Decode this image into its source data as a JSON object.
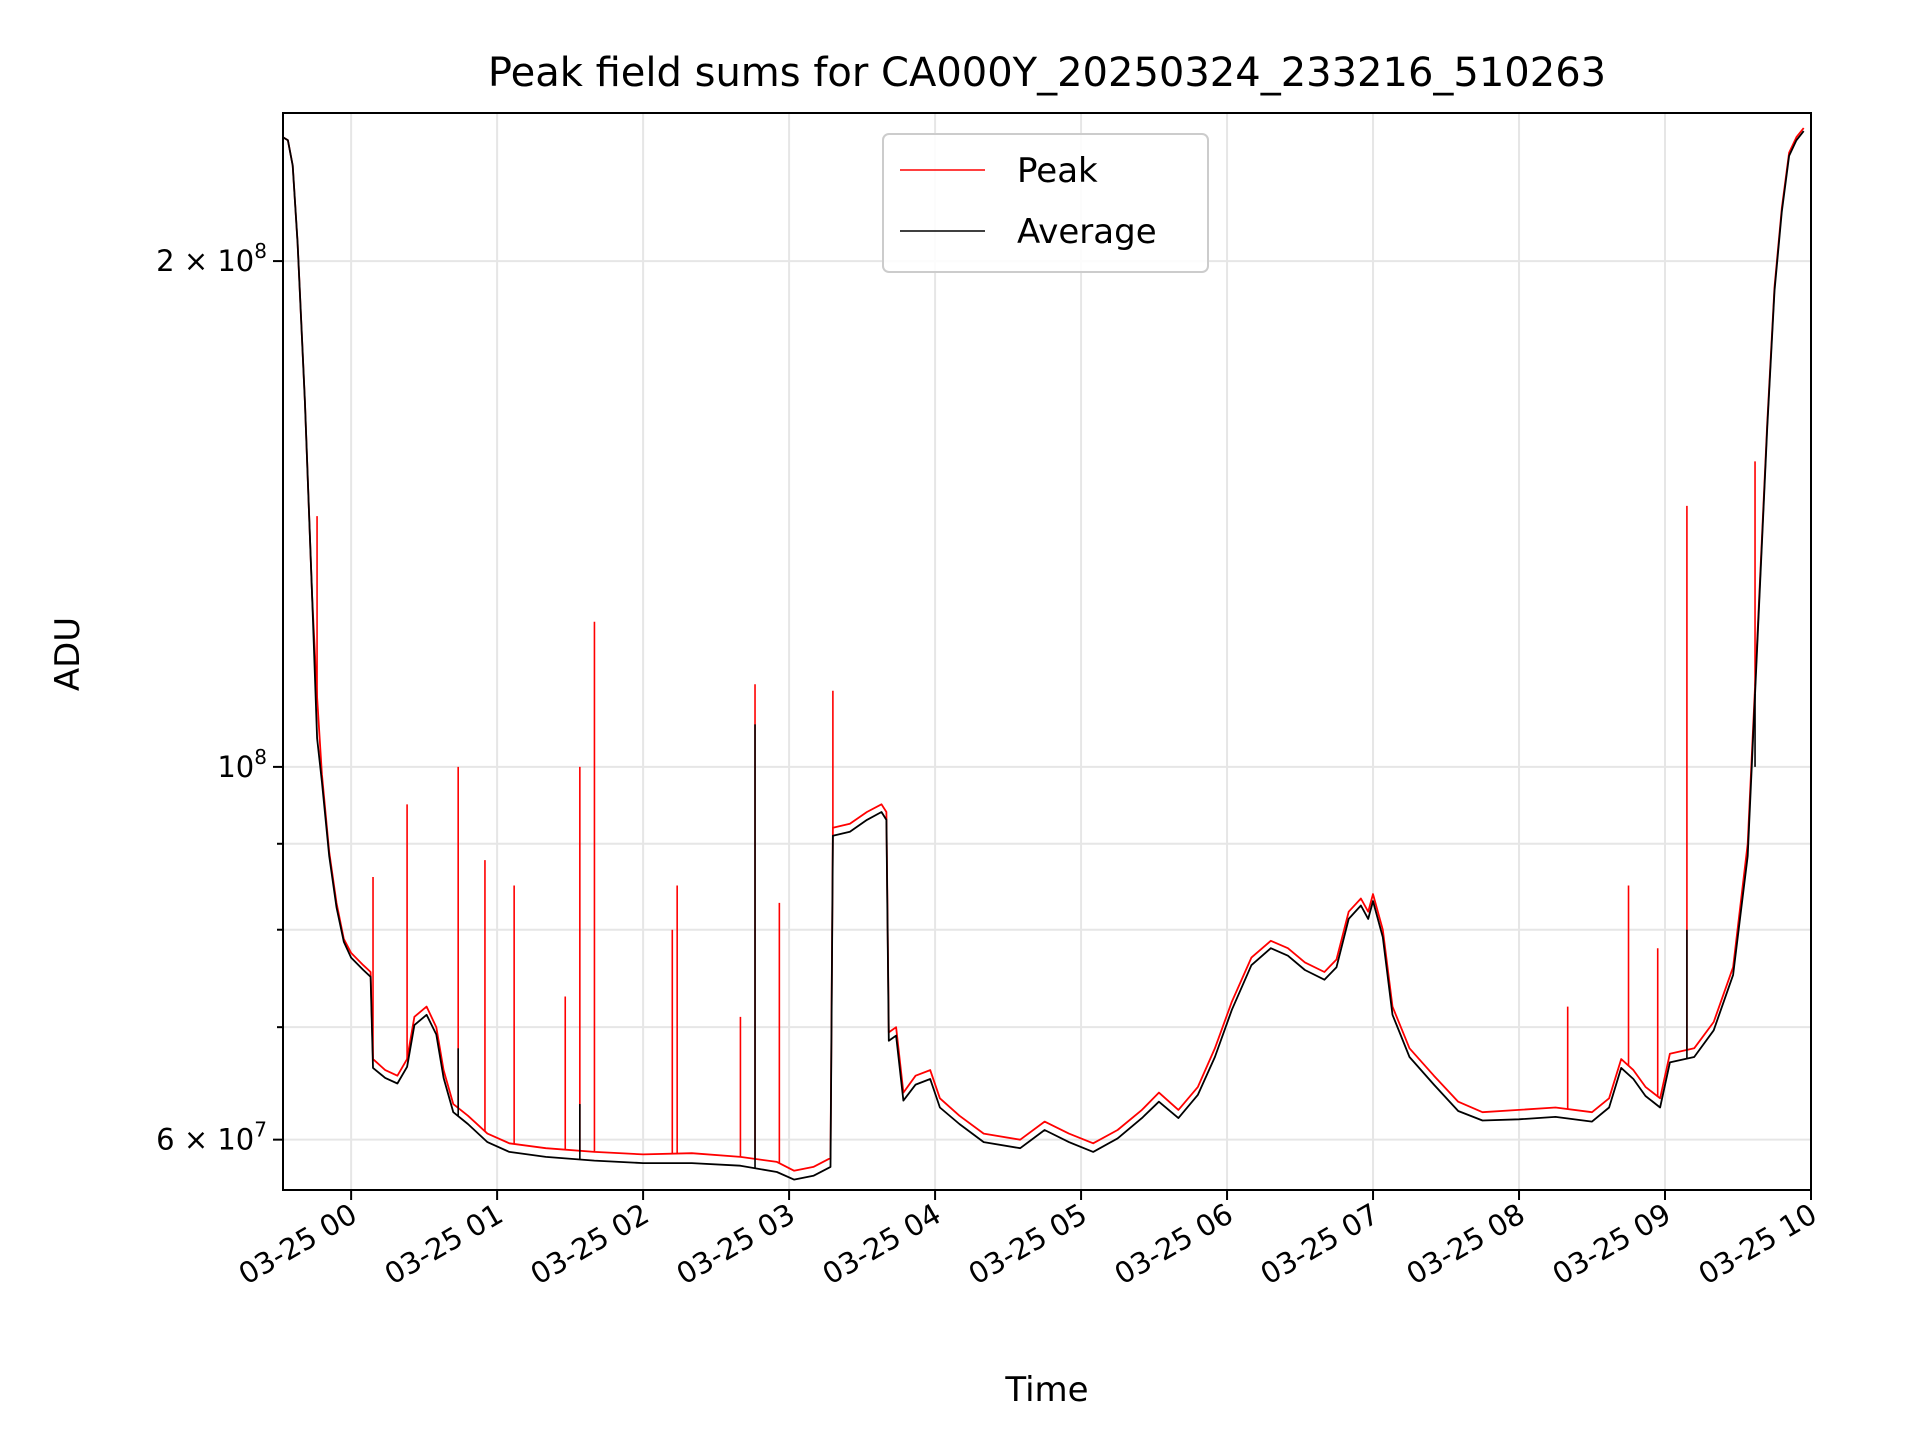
{
  "chart_data": {
    "type": "line",
    "title": "Peak field sums for CA000Y_20250324_233216_510263",
    "xlabel": "Time",
    "ylabel": "ADU",
    "y_scale": "log",
    "grid": true,
    "legend_position": "upper-center",
    "x_range": [
      "03-24 23:32",
      "03-25 10:00"
    ],
    "ylim": [
      56000000,
      245000000
    ],
    "x_ticks": [
      "03-25 00",
      "03-25 01",
      "03-25 02",
      "03-25 03",
      "03-25 04",
      "03-25 05",
      "03-25 06",
      "03-25 07",
      "03-25 08",
      "03-25 09",
      "03-25 10"
    ],
    "y_major_ticks": [
      {
        "value": 60000000,
        "base": "6 × 10",
        "exp": "7"
      },
      {
        "value": 100000000,
        "base": "10",
        "exp": "8"
      },
      {
        "value": 200000000,
        "base": "2 × 10",
        "exp": "8"
      }
    ],
    "y_minor_ticks": [
      70000000,
      80000000,
      90000000
    ],
    "series": [
      {
        "name": "Peak",
        "color": "#ff0000",
        "points": [
          [
            "03-24 23:32",
            237000000
          ],
          [
            "03-24 23:34",
            236000000
          ],
          [
            "03-24 23:36",
            228000000
          ],
          [
            "03-24 23:38",
            205000000
          ],
          [
            "03-24 23:41",
            165000000
          ],
          [
            "03-24 23:44",
            126000000
          ],
          [
            "03-24 23:46",
            110000000
          ],
          [
            "03-24 23:48",
            99000000
          ],
          [
            "03-24 23:51",
            89000000
          ],
          [
            "03-24 23:54",
            83000000
          ],
          [
            "03-24 23:57",
            79000000
          ],
          [
            "03-25 00:00",
            77500000
          ],
          [
            "03-25 00:05",
            76200000
          ],
          [
            "03-25 00:08",
            75500000
          ],
          [
            "03-25 00:09",
            67000000
          ],
          [
            "03-25 00:14",
            66000000
          ],
          [
            "03-25 00:19",
            65500000
          ],
          [
            "03-25 00:23",
            67000000
          ],
          [
            "03-25 00:26",
            71000000
          ],
          [
            "03-25 00:31",
            72000000
          ],
          [
            "03-25 00:35",
            70000000
          ],
          [
            "03-25 00:38",
            66000000
          ],
          [
            "03-25 00:42",
            63000000
          ],
          [
            "03-25 00:48",
            62000000
          ],
          [
            "03-25 00:56",
            60500000
          ],
          [
            "03-25 01:05",
            59700000
          ],
          [
            "03-25 01:20",
            59300000
          ],
          [
            "03-25 01:40",
            59000000
          ],
          [
            "03-25 02:00",
            58800000
          ],
          [
            "03-25 02:20",
            58900000
          ],
          [
            "03-25 02:40",
            58600000
          ],
          [
            "03-25 02:55",
            58200000
          ],
          [
            "03-25 03:02",
            57500000
          ],
          [
            "03-25 03:10",
            57800000
          ],
          [
            "03-25 03:17",
            58500000
          ],
          [
            "03-25 03:18",
            92000000
          ],
          [
            "03-25 03:25",
            92500000
          ],
          [
            "03-25 03:32",
            94000000
          ],
          [
            "03-25 03:38",
            95000000
          ],
          [
            "03-25 03:40",
            94000000
          ],
          [
            "03-25 03:41",
            69500000
          ],
          [
            "03-25 03:44",
            70000000
          ],
          [
            "03-25 03:47",
            64000000
          ],
          [
            "03-25 03:52",
            65500000
          ],
          [
            "03-25 03:58",
            66000000
          ],
          [
            "03-25 04:02",
            63500000
          ],
          [
            "03-25 04:10",
            62000000
          ],
          [
            "03-25 04:20",
            60500000
          ],
          [
            "03-25 04:35",
            60000000
          ],
          [
            "03-25 04:45",
            61500000
          ],
          [
            "03-25 04:55",
            60500000
          ],
          [
            "03-25 05:05",
            59700000
          ],
          [
            "03-25 05:15",
            60800000
          ],
          [
            "03-25 05:25",
            62500000
          ],
          [
            "03-25 05:32",
            64000000
          ],
          [
            "03-25 05:40",
            62500000
          ],
          [
            "03-25 05:48",
            64500000
          ],
          [
            "03-25 05:55",
            68000000
          ],
          [
            "03-25 06:02",
            72500000
          ],
          [
            "03-25 06:10",
            77000000
          ],
          [
            "03-25 06:18",
            78800000
          ],
          [
            "03-25 06:25",
            78000000
          ],
          [
            "03-25 06:32",
            76500000
          ],
          [
            "03-25 06:40",
            75500000
          ],
          [
            "03-25 06:45",
            76800000
          ],
          [
            "03-25 06:50",
            82000000
          ],
          [
            "03-25 06:55",
            83500000
          ],
          [
            "03-25 06:58",
            82000000
          ],
          [
            "03-25 07:00",
            84000000
          ],
          [
            "03-25 07:04",
            80000000
          ],
          [
            "03-25 07:08",
            72000000
          ],
          [
            "03-25 07:15",
            68000000
          ],
          [
            "03-25 07:25",
            65500000
          ],
          [
            "03-25 07:35",
            63200000
          ],
          [
            "03-25 07:45",
            62300000
          ],
          [
            "03-25 08:00",
            62500000
          ],
          [
            "03-25 08:15",
            62700000
          ],
          [
            "03-25 08:30",
            62300000
          ],
          [
            "03-25 08:37",
            63500000
          ],
          [
            "03-25 08:42",
            67000000
          ],
          [
            "03-25 08:47",
            66000000
          ],
          [
            "03-25 08:52",
            64500000
          ],
          [
            "03-25 08:58",
            63500000
          ],
          [
            "03-25 09:02",
            67500000
          ],
          [
            "03-25 09:12",
            68000000
          ],
          [
            "03-25 09:20",
            70500000
          ],
          [
            "03-25 09:28",
            76000000
          ],
          [
            "03-25 09:34",
            90000000
          ],
          [
            "03-25 09:38",
            120000000
          ],
          [
            "03-25 09:42",
            160000000
          ],
          [
            "03-25 09:45",
            193000000
          ],
          [
            "03-25 09:48",
            215000000
          ],
          [
            "03-25 09:51",
            232000000
          ],
          [
            "03-25 09:54",
            237000000
          ],
          [
            "03-25 09:57",
            240000000
          ]
        ],
        "spikes": [
          [
            "03-24 23:46",
            141000000
          ],
          [
            "03-25 00:09",
            86000000
          ],
          [
            "03-25 00:23",
            95000000
          ],
          [
            "03-25 00:44",
            100000000
          ],
          [
            "03-25 00:55",
            88000000
          ],
          [
            "03-25 01:07",
            85000000
          ],
          [
            "03-25 01:28",
            73000000
          ],
          [
            "03-25 01:34",
            100000000
          ],
          [
            "03-25 01:40",
            122000000
          ],
          [
            "03-25 02:12",
            80000000
          ],
          [
            "03-25 02:14",
            85000000
          ],
          [
            "03-25 02:40",
            71000000
          ],
          [
            "03-25 02:46",
            112000000
          ],
          [
            "03-25 02:56",
            83000000
          ],
          [
            "03-25 03:18",
            111000000
          ],
          [
            "03-25 08:20",
            72000000
          ],
          [
            "03-25 08:45",
            85000000
          ],
          [
            "03-25 08:57",
            78000000
          ],
          [
            "03-25 09:09",
            143000000
          ],
          [
            "03-25 09:37",
            152000000
          ]
        ]
      },
      {
        "name": "Average",
        "color": "#000000",
        "points": [
          [
            "03-24 23:32",
            237000000
          ],
          [
            "03-24 23:34",
            236000000
          ],
          [
            "03-24 23:36",
            228000000
          ],
          [
            "03-24 23:38",
            205000000
          ],
          [
            "03-24 23:41",
            165000000
          ],
          [
            "03-24 23:44",
            126000000
          ],
          [
            "03-24 23:46",
            104000000
          ],
          [
            "03-24 23:48",
            98000000
          ],
          [
            "03-24 23:51",
            88500000
          ],
          [
            "03-24 23:54",
            82500000
          ],
          [
            "03-24 23:57",
            78700000
          ],
          [
            "03-25 00:00",
            77000000
          ],
          [
            "03-25 00:05",
            75700000
          ],
          [
            "03-25 00:08",
            75000000
          ],
          [
            "03-25 00:09",
            66200000
          ],
          [
            "03-25 00:14",
            65300000
          ],
          [
            "03-25 00:19",
            64800000
          ],
          [
            "03-25 00:23",
            66300000
          ],
          [
            "03-25 00:26",
            70200000
          ],
          [
            "03-25 00:31",
            71200000
          ],
          [
            "03-25 00:35",
            69300000
          ],
          [
            "03-25 00:38",
            65300000
          ],
          [
            "03-25 00:42",
            62300000
          ],
          [
            "03-25 00:48",
            61300000
          ],
          [
            "03-25 00:56",
            59800000
          ],
          [
            "03-25 01:05",
            59000000
          ],
          [
            "03-25 01:20",
            58600000
          ],
          [
            "03-25 01:40",
            58300000
          ],
          [
            "03-25 02:00",
            58100000
          ],
          [
            "03-25 02:20",
            58100000
          ],
          [
            "03-25 02:40",
            57900000
          ],
          [
            "03-25 02:55",
            57400000
          ],
          [
            "03-25 03:02",
            56800000
          ],
          [
            "03-25 03:10",
            57100000
          ],
          [
            "03-25 03:17",
            57800000
          ],
          [
            "03-25 03:18",
            91000000
          ],
          [
            "03-25 03:25",
            91500000
          ],
          [
            "03-25 03:32",
            93000000
          ],
          [
            "03-25 03:38",
            94000000
          ],
          [
            "03-25 03:40",
            93000000
          ],
          [
            "03-25 03:41",
            68700000
          ],
          [
            "03-25 03:44",
            69200000
          ],
          [
            "03-25 03:47",
            63300000
          ],
          [
            "03-25 03:52",
            64700000
          ],
          [
            "03-25 03:58",
            65200000
          ],
          [
            "03-25 04:02",
            62700000
          ],
          [
            "03-25 04:10",
            61300000
          ],
          [
            "03-25 04:20",
            59800000
          ],
          [
            "03-25 04:35",
            59300000
          ],
          [
            "03-25 04:45",
            60800000
          ],
          [
            "03-25 04:55",
            59800000
          ],
          [
            "03-25 05:05",
            59000000
          ],
          [
            "03-25 05:15",
            60100000
          ],
          [
            "03-25 05:25",
            61800000
          ],
          [
            "03-25 05:32",
            63200000
          ],
          [
            "03-25 05:40",
            61800000
          ],
          [
            "03-25 05:48",
            63800000
          ],
          [
            "03-25 05:55",
            67200000
          ],
          [
            "03-25 06:02",
            71700000
          ],
          [
            "03-25 06:10",
            76200000
          ],
          [
            "03-25 06:18",
            78000000
          ],
          [
            "03-25 06:25",
            77200000
          ],
          [
            "03-25 06:32",
            75700000
          ],
          [
            "03-25 06:40",
            74700000
          ],
          [
            "03-25 06:45",
            76000000
          ],
          [
            "03-25 06:50",
            81200000
          ],
          [
            "03-25 06:55",
            82700000
          ],
          [
            "03-25 06:58",
            81200000
          ],
          [
            "03-25 07:00",
            83200000
          ],
          [
            "03-25 07:04",
            79200000
          ],
          [
            "03-25 07:08",
            71200000
          ],
          [
            "03-25 07:15",
            67200000
          ],
          [
            "03-25 07:25",
            64700000
          ],
          [
            "03-25 07:35",
            62400000
          ],
          [
            "03-25 07:45",
            61600000
          ],
          [
            "03-25 08:00",
            61700000
          ],
          [
            "03-25 08:15",
            61900000
          ],
          [
            "03-25 08:30",
            61500000
          ],
          [
            "03-25 08:37",
            62700000
          ],
          [
            "03-25 08:42",
            66200000
          ],
          [
            "03-25 08:47",
            65200000
          ],
          [
            "03-25 08:52",
            63700000
          ],
          [
            "03-25 08:58",
            62700000
          ],
          [
            "03-25 09:02",
            66700000
          ],
          [
            "03-25 09:12",
            67200000
          ],
          [
            "03-25 09:20",
            69700000
          ],
          [
            "03-25 09:28",
            75200000
          ],
          [
            "03-25 09:34",
            88500000
          ],
          [
            "03-25 09:38",
            119000000
          ],
          [
            "03-25 09:42",
            159000000
          ],
          [
            "03-25 09:45",
            192000000
          ],
          [
            "03-25 09:48",
            214000000
          ],
          [
            "03-25 09:51",
            231000000
          ],
          [
            "03-25 09:54",
            236000000
          ],
          [
            "03-25 09:57",
            239000000
          ]
        ],
        "spikes": [
          [
            "03-25 00:44",
            68000000
          ],
          [
            "03-25 01:34",
            63000000
          ],
          [
            "03-25 02:46",
            106000000
          ],
          [
            "03-25 03:18",
            91000000
          ],
          [
            "03-25 09:09",
            80000000
          ],
          [
            "03-25 09:37",
            100000000
          ]
        ]
      }
    ]
  }
}
